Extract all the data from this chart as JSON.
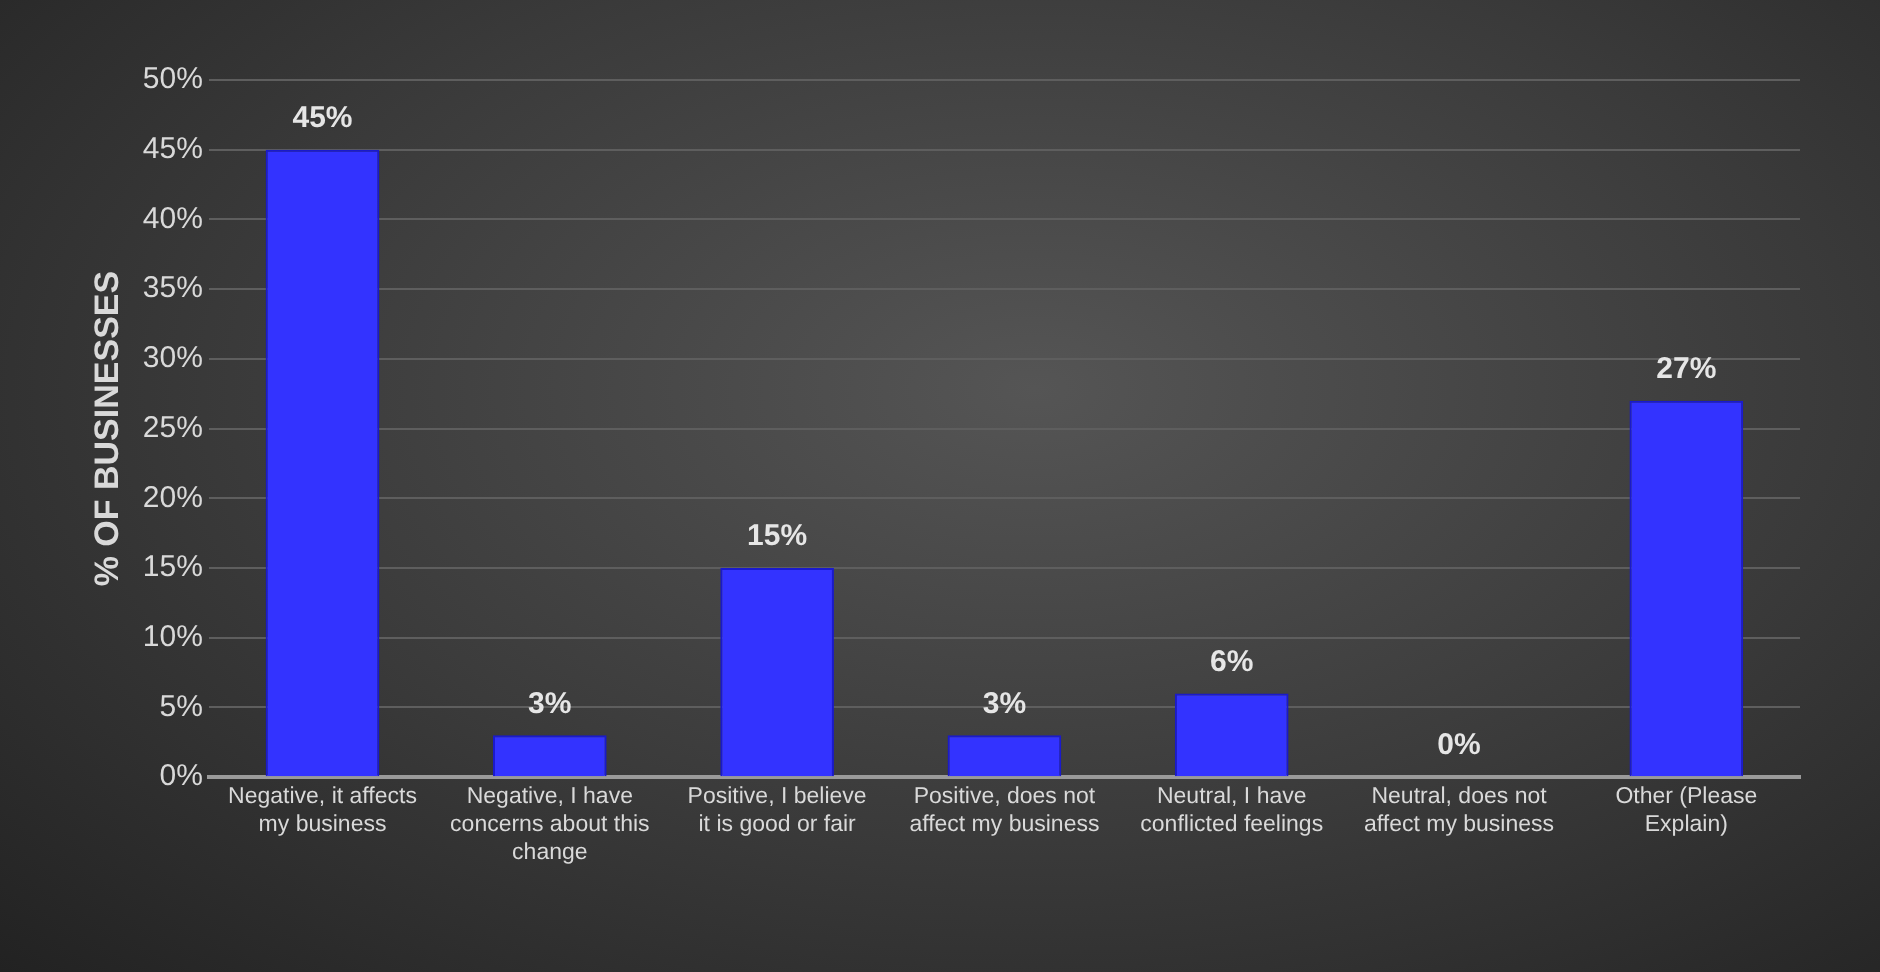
{
  "chart_data": {
    "type": "bar",
    "ylabel": "% OF BUSINESSES",
    "categories": [
      "Negative, it affects my business",
      "Negative, I have concerns about this change",
      "Positive, I believe it is good or fair",
      "Positive, does not affect my business",
      "Neutral, I have conflicted feelings",
      "Neutral, does not affect my business",
      "Other (Please Explain)"
    ],
    "values": [
      45,
      3,
      15,
      3,
      6,
      0,
      27
    ],
    "value_labels": [
      "45%",
      "3%",
      "15%",
      "3%",
      "6%",
      "0%",
      "27%"
    ],
    "color": "#3333ff",
    "ylim": [
      0,
      50
    ],
    "yticks": [
      {
        "value": 0,
        "label": "0%"
      },
      {
        "value": 5,
        "label": "5%"
      },
      {
        "value": 10,
        "label": "10%"
      },
      {
        "value": 15,
        "label": "15%"
      },
      {
        "value": 20,
        "label": "20%"
      },
      {
        "value": 25,
        "label": "25%"
      },
      {
        "value": 30,
        "label": "30%"
      },
      {
        "value": 35,
        "label": "35%"
      },
      {
        "value": 40,
        "label": "40%"
      },
      {
        "value": 45,
        "label": "45%"
      },
      {
        "value": 50,
        "label": "50%"
      }
    ],
    "grid": "y",
    "legend": false
  }
}
